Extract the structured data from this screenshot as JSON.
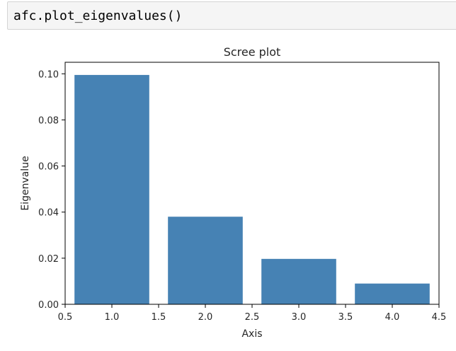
{
  "cell": {
    "code": "afc.plot_eigenvalues()"
  },
  "chart_data": {
    "type": "bar",
    "title": "Scree plot",
    "xlabel": "Axis",
    "ylabel": "Eigenvalue",
    "x": [
      1,
      2,
      3,
      4
    ],
    "values": [
      0.0995,
      0.038,
      0.0197,
      0.009
    ],
    "bar_width": 0.8,
    "xlim": [
      0.5,
      4.5
    ],
    "ylim": [
      0,
      0.105
    ],
    "xticks": [
      0.5,
      1.0,
      1.5,
      2.0,
      2.5,
      3.0,
      3.5,
      4.0,
      4.5
    ],
    "xtick_labels": [
      "0.5",
      "1.0",
      "1.5",
      "2.0",
      "2.5",
      "3.0",
      "3.5",
      "4.0",
      "4.5"
    ],
    "yticks": [
      0.0,
      0.02,
      0.04,
      0.06,
      0.08,
      0.1
    ],
    "ytick_labels": [
      "0.00",
      "0.02",
      "0.04",
      "0.06",
      "0.08",
      "0.10"
    ],
    "bar_color": "#4682b4",
    "grid": false
  }
}
